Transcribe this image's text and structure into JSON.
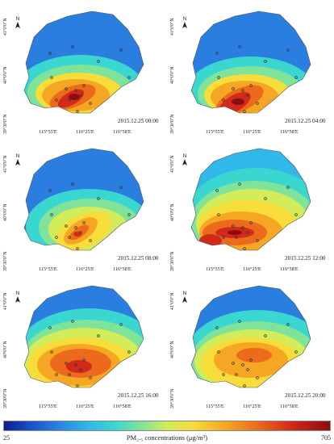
{
  "colorbar": {
    "min_label": "25",
    "max_label": "705",
    "title": "PM₂.₅ concentrations (μg/m³)",
    "stops": [
      "#0b1f8c",
      "#1a4fc8",
      "#2a7ee0",
      "#2fb8e8",
      "#3ad6d0",
      "#7fe39a",
      "#d3ec5a",
      "#f7dc3a",
      "#f5a723",
      "#ec6a1c",
      "#d22a1a",
      "#8e0c10"
    ]
  },
  "axis": {
    "lat_top": "41°0'0\"N",
    "lat_mid": "40°0'0\"N",
    "lat_bottom": "39°30'0\"N",
    "lon_1": "115°55'E",
    "lon_2": "116°25'E",
    "lon_3": "116°58'E",
    "north": "N"
  },
  "panels": [
    {
      "timestamp": "2015.12.25  00:00",
      "north_icon": "north-arrow-icon"
    },
    {
      "timestamp": "2015.12.25  04:00",
      "north_icon": "north-arrow-icon"
    },
    {
      "timestamp": "2015.12.25  08:00",
      "north_icon": "north-arrow-icon"
    },
    {
      "timestamp": "2015.12.25  12:00",
      "north_icon": "north-arrow-icon"
    },
    {
      "timestamp": "2015.12.25  16:00",
      "north_icon": "north-arrow-icon"
    },
    {
      "timestamp": "2015.12.25  20:00",
      "north_icon": "north-arrow-icon"
    }
  ]
}
